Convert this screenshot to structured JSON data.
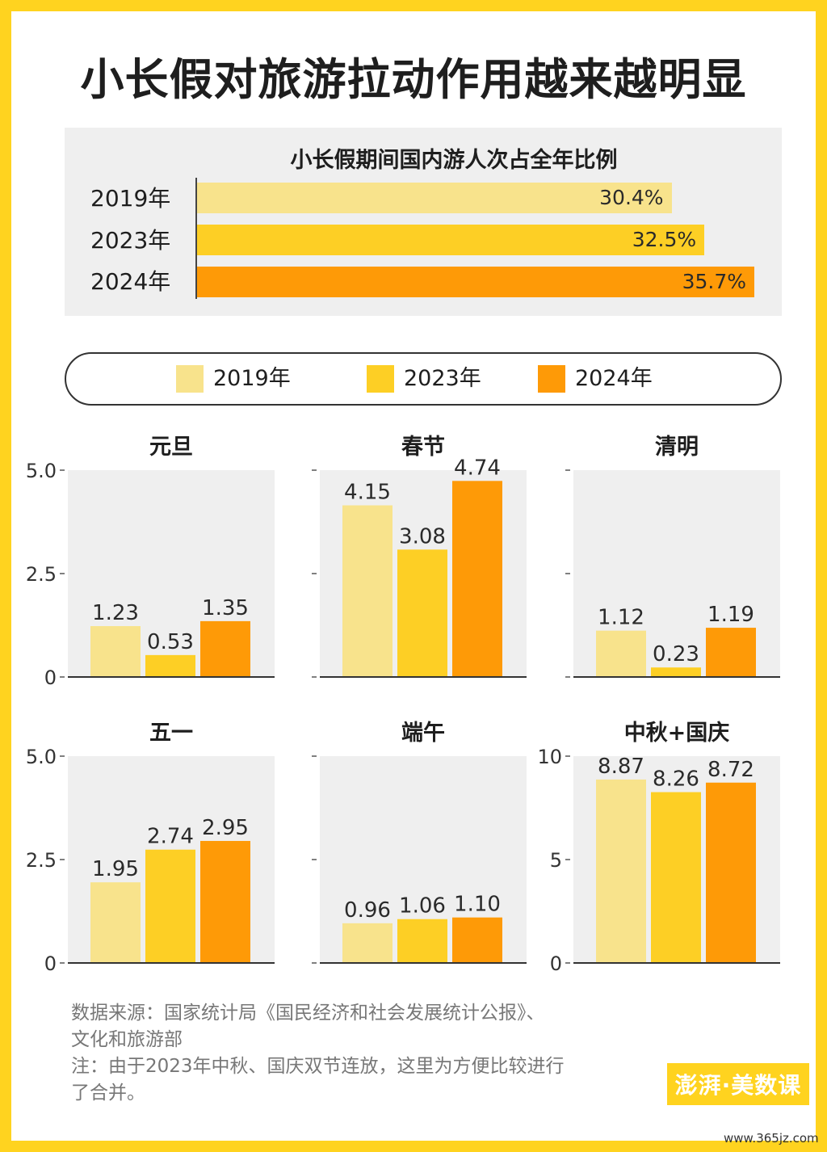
{
  "title": "小长假对旅游拉动作用越来越明显",
  "colors": {
    "y2019": "#f8e38c",
    "y2023": "#fdcf25",
    "y2024": "#fe9a07",
    "panel_bg": "#efefef",
    "frame": "#ffd31f"
  },
  "share_chart": {
    "title": "小长假期间国内游人次占全年比例",
    "rows": [
      {
        "label": "2019年",
        "value": 30.4,
        "text": "30.4%"
      },
      {
        "label": "2023年",
        "value": 32.5,
        "text": "32.5%"
      },
      {
        "label": "2024年",
        "value": 35.7,
        "text": "35.7%"
      }
    ]
  },
  "legend": [
    "2019年",
    "2023年",
    "2024年"
  ],
  "chart_data": [
    {
      "type": "bar",
      "title": "元旦",
      "categories": [
        "2019年",
        "2023年",
        "2024年"
      ],
      "values": [
        1.23,
        0.53,
        1.35
      ],
      "ylim": [
        0,
        5
      ],
      "ticks": [
        "0",
        "2.5",
        "5.0"
      ]
    },
    {
      "type": "bar",
      "title": "春节",
      "categories": [
        "2019年",
        "2023年",
        "2024年"
      ],
      "values": [
        4.15,
        3.08,
        4.74
      ],
      "ylim": [
        0,
        5
      ],
      "ticks": [
        "",
        "",
        ""
      ]
    },
    {
      "type": "bar",
      "title": "清明",
      "categories": [
        "2019年",
        "2023年",
        "2024年"
      ],
      "values": [
        1.12,
        0.23,
        1.19
      ],
      "ylim": [
        0,
        5
      ],
      "ticks": [
        "",
        "",
        ""
      ]
    },
    {
      "type": "bar",
      "title": "五一",
      "categories": [
        "2019年",
        "2023年",
        "2024年"
      ],
      "values": [
        1.95,
        2.74,
        2.95
      ],
      "ylim": [
        0,
        5
      ],
      "ticks": [
        "0",
        "2.5",
        "5.0"
      ]
    },
    {
      "type": "bar",
      "title": "端午",
      "categories": [
        "2019年",
        "2023年",
        "2024年"
      ],
      "values": [
        0.96,
        1.06,
        1.1
      ],
      "ylim": [
        0,
        5
      ],
      "ticks": [
        "",
        "",
        ""
      ]
    },
    {
      "type": "bar",
      "title": "中秋+国庆",
      "categories": [
        "2019年",
        "2023年",
        "2024年"
      ],
      "values": [
        8.87,
        8.26,
        8.72
      ],
      "ylim": [
        0,
        10
      ],
      "ticks": [
        "0",
        "5",
        "10"
      ]
    }
  ],
  "source_lines": [
    "数据来源：国家统计局《国民经济和社会发展统计公报》、",
    "文化和旅游部",
    "注：由于2023年中秋、国庆双节连放，这里为方便比较进行",
    "了合并。"
  ],
  "logo_text": "澎湃·美数课",
  "watermark": "www.365jz.com"
}
